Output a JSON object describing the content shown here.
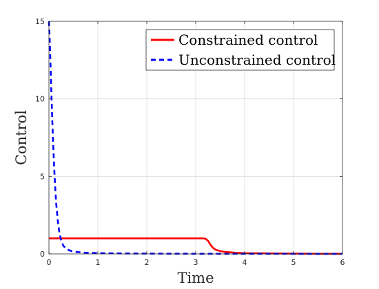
{
  "chart_data": {
    "type": "line",
    "xlabel": "Time",
    "ylabel": "Control",
    "xlim": [
      0,
      6
    ],
    "ylim": [
      0,
      15
    ],
    "xticks": [
      "0",
      "1",
      "2",
      "3",
      "4",
      "5",
      "6"
    ],
    "yticks": [
      "0",
      "5",
      "10",
      "15"
    ],
    "grid": true,
    "legend_position": "top-right",
    "series": [
      {
        "name": "Constrained control",
        "color": "#ff0000",
        "style": "solid",
        "x": [
          0,
          0.5,
          1,
          1.5,
          2,
          2.5,
          3,
          3.15,
          3.2,
          3.25,
          3.3,
          3.35,
          3.4,
          3.5,
          3.6,
          3.8,
          4.0,
          4.5,
          5.0,
          5.5,
          6.0
        ],
        "y": [
          1,
          1,
          1,
          1,
          1,
          1,
          1,
          1,
          0.98,
          0.85,
          0.6,
          0.4,
          0.28,
          0.18,
          0.13,
          0.08,
          0.05,
          0.03,
          0.02,
          0.01,
          0.01
        ]
      },
      {
        "name": "Unconstrained control",
        "color": "#0000ff",
        "style": "dashed",
        "x": [
          0,
          0.01,
          0.03,
          0.05,
          0.07,
          0.09,
          0.11,
          0.13,
          0.15,
          0.18,
          0.21,
          0.25,
          0.3,
          0.4,
          0.5,
          0.7,
          1.0,
          1.5,
          2.0,
          3.0,
          4.0,
          5.0,
          6.0
        ],
        "y": [
          15,
          14.3,
          12.5,
          10.4,
          8.5,
          6.8,
          5.4,
          4.2,
          3.2,
          2.2,
          1.45,
          0.85,
          0.5,
          0.25,
          0.15,
          0.08,
          0.05,
          0.03,
          0.02,
          0.01,
          0.01,
          0.005,
          0
        ]
      }
    ]
  }
}
